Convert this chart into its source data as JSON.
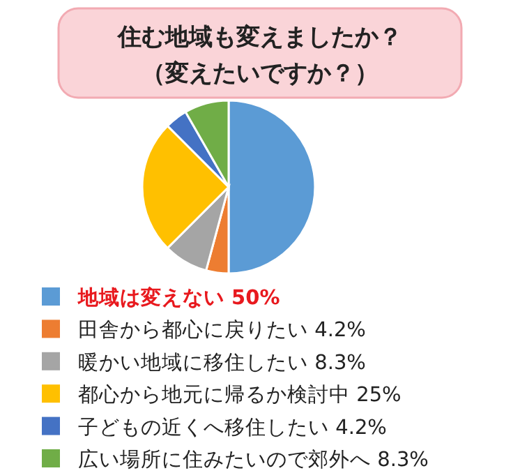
{
  "chart_data": {
    "type": "pie",
    "title": "住む地域も変えましたか？",
    "subtitle": "（変えたいですか？）",
    "categories": [
      "地域は変えない",
      "田舎から都心に戻りたい",
      "暖かい地域に移住したい",
      "都心から地元に帰るか検討中",
      "子どもの近くへ移住したい",
      "広い場所に住みたいので郊外へ"
    ],
    "values": [
      50,
      4.2,
      8.3,
      25,
      4.2,
      8.3
    ],
    "value_labels": [
      "50%",
      "4.2%",
      "8.3%",
      "25%",
      "4.2%",
      "8.3%"
    ],
    "colors": [
      "#5b9bd5",
      "#ed7d31",
      "#a5a5a5",
      "#ffc000",
      "#4472c4",
      "#70ad47"
    ],
    "legend": "bottom"
  }
}
